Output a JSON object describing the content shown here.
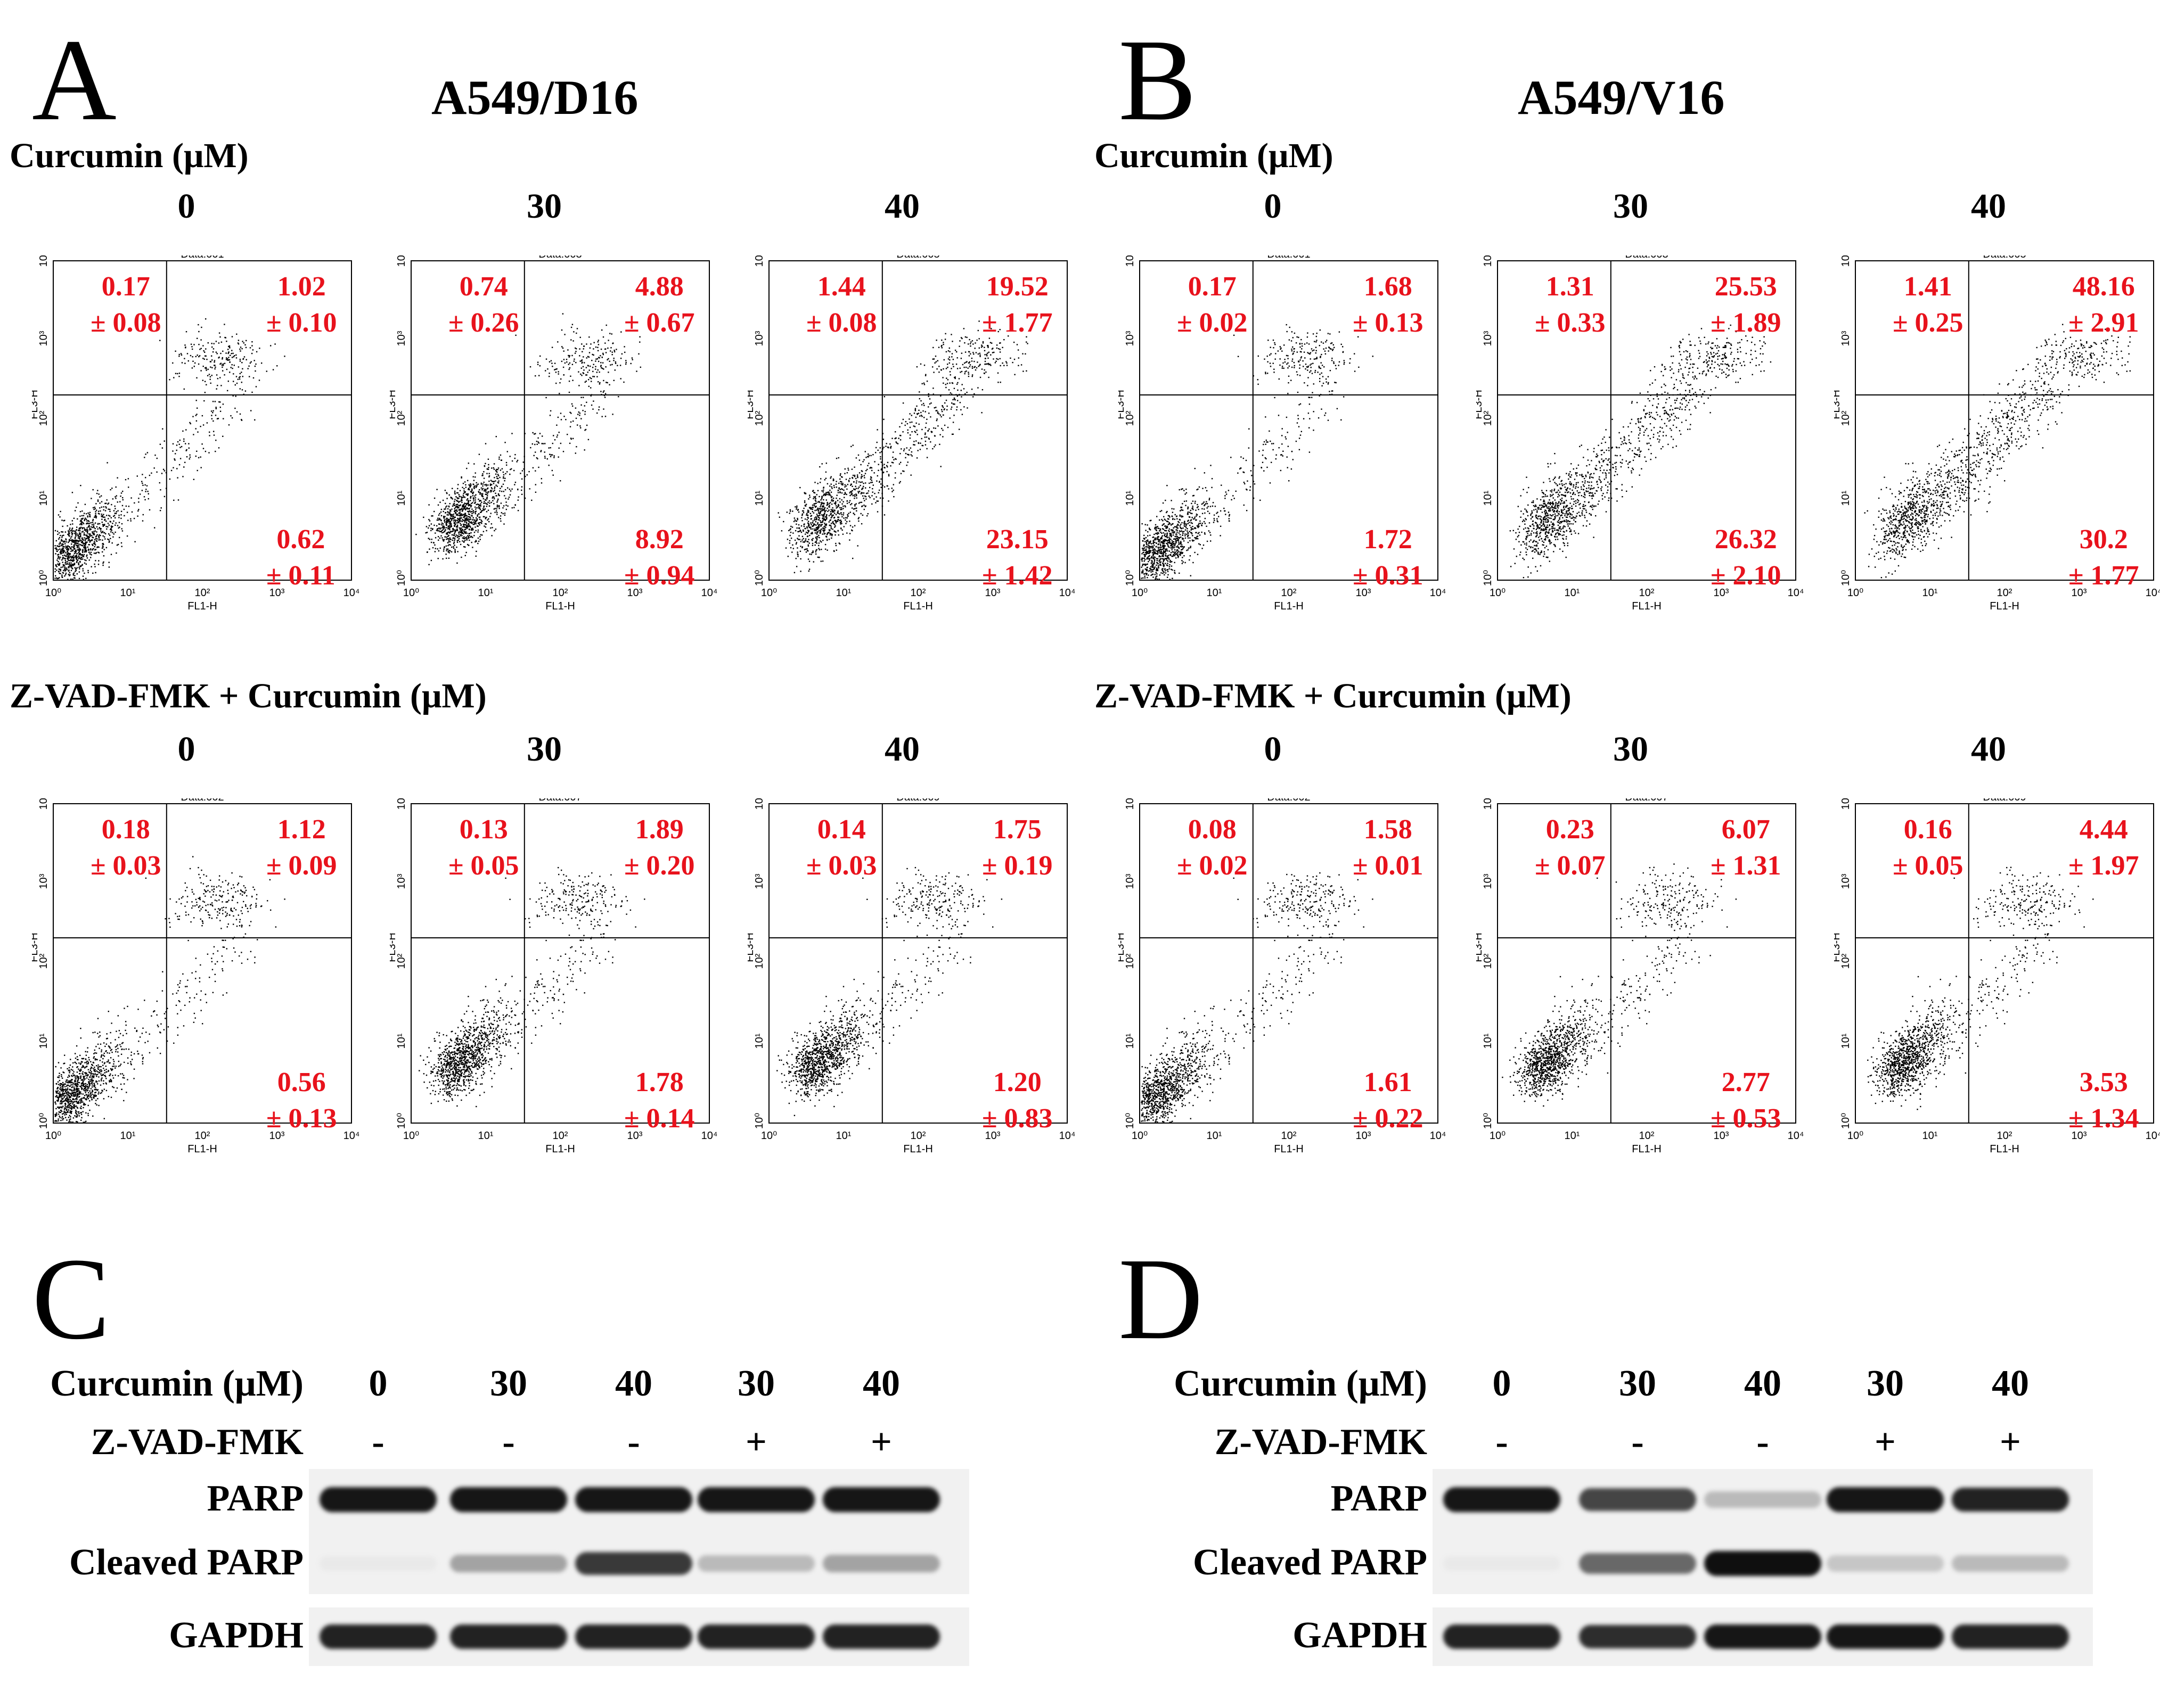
{
  "panel_letters": [
    "A",
    "B",
    "C",
    "D"
  ],
  "flow": {
    "A": {
      "title": "A549/D16",
      "rows": [
        {
          "heading": "Curcumin (μM)",
          "panels": [
            {
              "conc": "0",
              "file": "Data.001",
              "ul": [
                "0.17",
                "± 0.08"
              ],
              "ur": [
                "1.02",
                "± 0.10"
              ],
              "lr": [
                "0.62",
                "± 0.11"
              ]
            },
            {
              "conc": "30",
              "file": "Data.003",
              "ul": [
                "0.74",
                "± 0.26"
              ],
              "ur": [
                "4.88",
                "± 0.67"
              ],
              "lr": [
                "8.92",
                "± 0.94"
              ]
            },
            {
              "conc": "40",
              "file": "Data.005",
              "ul": [
                "1.44",
                "± 0.08"
              ],
              "ur": [
                "19.52",
                "± 1.77"
              ],
              "lr": [
                "23.15",
                "± 1.42"
              ]
            }
          ]
        },
        {
          "heading": "Z-VAD-FMK + Curcumin (μM)",
          "panels": [
            {
              "conc": "0",
              "file": "Data.002",
              "ul": [
                "0.18",
                "± 0.03"
              ],
              "ur": [
                "1.12",
                "± 0.09"
              ],
              "lr": [
                "0.56",
                "± 0.13"
              ]
            },
            {
              "conc": "30",
              "file": "Data.007",
              "ul": [
                "0.13",
                "± 0.05"
              ],
              "ur": [
                "1.89",
                "± 0.20"
              ],
              "lr": [
                "1.78",
                "± 0.14"
              ]
            },
            {
              "conc": "40",
              "file": "Data.009",
              "ul": [
                "0.14",
                "± 0.03"
              ],
              "ur": [
                "1.75",
                "± 0.19"
              ],
              "lr": [
                "1.20",
                "± 0.83"
              ]
            }
          ]
        }
      ]
    },
    "B": {
      "title": "A549/V16",
      "rows": [
        {
          "heading": "Curcumin (μM)",
          "panels": [
            {
              "conc": "0",
              "file": "Data.001",
              "ul": [
                "0.17",
                "± 0.02"
              ],
              "ur": [
                "1.68",
                "± 0.13"
              ],
              "lr": [
                "1.72",
                "± 0.31"
              ]
            },
            {
              "conc": "30",
              "file": "Data.003",
              "ul": [
                "1.31",
                "± 0.33"
              ],
              "ur": [
                "25.53",
                "± 1.89"
              ],
              "lr": [
                "26.32",
                "± 2.10"
              ]
            },
            {
              "conc": "40",
              "file": "Data.005",
              "ul": [
                "1.41",
                "± 0.25"
              ],
              "ur": [
                "48.16",
                "± 2.91"
              ],
              "lr": [
                "30.2",
                "± 1.77"
              ]
            }
          ]
        },
        {
          "heading": "Z-VAD-FMK + Curcumin (μM)",
          "panels": [
            {
              "conc": "0",
              "file": "Data.002",
              "ul": [
                "0.08",
                "± 0.02"
              ],
              "ur": [
                "1.58",
                "± 0.01"
              ],
              "lr": [
                "1.61",
                "± 0.22"
              ]
            },
            {
              "conc": "30",
              "file": "Data.007",
              "ul": [
                "0.23",
                "± 0.07"
              ],
              "ur": [
                "6.07",
                "± 1.31"
              ],
              "lr": [
                "2.77",
                "± 0.53"
              ]
            },
            {
              "conc": "40",
              "file": "Data.009",
              "ul": [
                "0.16",
                "± 0.05"
              ],
              "ur": [
                "4.44",
                "± 1.97"
              ],
              "lr": [
                "3.53",
                "± 1.34"
              ]
            }
          ]
        }
      ]
    },
    "axes": {
      "x_label": "FL1-H",
      "y_label": "FL3-H",
      "ticks": [
        "10⁰",
        "10¹",
        "10²",
        "10³",
        "10⁴"
      ]
    }
  },
  "western": {
    "C": {
      "row_labels": {
        "curcumin": "Curcumin (μM)",
        "zvad": "Z-VAD-FMK"
      },
      "lanes": [
        {
          "curcumin": "0",
          "zvad": "-"
        },
        {
          "curcumin": "30",
          "zvad": "-"
        },
        {
          "curcumin": "40",
          "zvad": "-"
        },
        {
          "curcumin": "30",
          "zvad": "+"
        },
        {
          "curcumin": "40",
          "zvad": "+"
        }
      ],
      "band_labels": [
        "PARP",
        "Cleaved PARP",
        "GAPDH"
      ],
      "band_intensity": {
        "PARP": [
          0.95,
          0.95,
          0.95,
          0.95,
          0.95
        ],
        "Cleaved PARP": [
          0.05,
          0.35,
          0.8,
          0.25,
          0.35
        ],
        "GAPDH": [
          0.9,
          0.9,
          0.9,
          0.9,
          0.9
        ]
      }
    },
    "D": {
      "row_labels": {
        "curcumin": "Curcumin (μM)",
        "zvad": "Z-VAD-FMK"
      },
      "lanes": [
        {
          "curcumin": "0",
          "zvad": "-"
        },
        {
          "curcumin": "30",
          "zvad": "-"
        },
        {
          "curcumin": "40",
          "zvad": "-"
        },
        {
          "curcumin": "30",
          "zvad": "+"
        },
        {
          "curcumin": "40",
          "zvad": "+"
        }
      ],
      "band_labels": [
        "PARP",
        "Cleaved PARP",
        "GAPDH"
      ],
      "band_intensity": {
        "PARP": [
          0.95,
          0.75,
          0.25,
          0.95,
          0.9
        ],
        "Cleaved PARP": [
          0.05,
          0.6,
          0.98,
          0.2,
          0.25
        ],
        "GAPDH": [
          0.9,
          0.85,
          0.95,
          0.95,
          0.9
        ]
      }
    }
  }
}
